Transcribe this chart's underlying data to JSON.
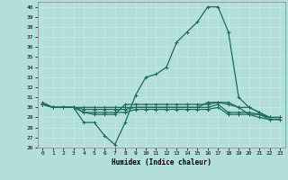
{
  "xlabel": "Humidex (Indice chaleur)",
  "bg_color": "#b2dfdb",
  "grid_color": "#c8e8e4",
  "line_color": "#1a6b5a",
  "xlim": [
    -0.5,
    23.5
  ],
  "ylim": [
    26,
    40.5
  ],
  "yticks": [
    26,
    27,
    28,
    29,
    30,
    31,
    32,
    33,
    34,
    35,
    36,
    37,
    38,
    39,
    40
  ],
  "xticks": [
    0,
    1,
    2,
    3,
    4,
    5,
    6,
    7,
    8,
    9,
    10,
    11,
    12,
    13,
    14,
    15,
    16,
    17,
    18,
    19,
    20,
    21,
    22,
    23
  ],
  "curves": [
    {
      "x": [
        0,
        1,
        2,
        3,
        4,
        5,
        6,
        7,
        8,
        9,
        10,
        11,
        12,
        13,
        14,
        15,
        16,
        17,
        18,
        19,
        20,
        21,
        22,
        23
      ],
      "y": [
        30.5,
        30.0,
        30.0,
        30.0,
        28.5,
        28.5,
        27.2,
        26.3,
        28.5,
        31.2,
        33.0,
        33.3,
        34.0,
        36.5,
        37.5,
        38.5,
        40.0,
        40.0,
        37.5,
        31.0,
        30.0,
        29.5,
        29.0,
        29.0
      ]
    },
    {
      "x": [
        0,
        1,
        2,
        3,
        4,
        5,
        6,
        7,
        8,
        9,
        10,
        11,
        12,
        13,
        14,
        15,
        16,
        17,
        18,
        19,
        20,
        21,
        22,
        23
      ],
      "y": [
        30.3,
        30.0,
        30.0,
        30.0,
        30.0,
        30.0,
        30.0,
        30.0,
        30.0,
        30.0,
        30.0,
        30.0,
        30.0,
        30.0,
        30.0,
        30.0,
        30.5,
        30.5,
        30.5,
        30.0,
        30.0,
        29.5,
        29.0,
        29.0
      ]
    },
    {
      "x": [
        0,
        1,
        2,
        3,
        4,
        5,
        6,
        7,
        8,
        9,
        10,
        11,
        12,
        13,
        14,
        15,
        16,
        17,
        18,
        19,
        20,
        21,
        22,
        23
      ],
      "y": [
        30.3,
        30.0,
        30.0,
        30.0,
        29.8,
        29.8,
        29.8,
        29.8,
        29.8,
        30.0,
        30.0,
        30.0,
        30.0,
        30.0,
        30.0,
        30.0,
        30.0,
        30.3,
        29.5,
        29.5,
        29.5,
        29.3,
        29.0,
        29.0
      ]
    },
    {
      "x": [
        0,
        1,
        2,
        3,
        4,
        5,
        6,
        7,
        8,
        9,
        10,
        11,
        12,
        13,
        14,
        15,
        16,
        17,
        18,
        19,
        20,
        21,
        22,
        23
      ],
      "y": [
        30.3,
        30.0,
        30.0,
        30.0,
        29.5,
        29.5,
        29.5,
        29.5,
        29.5,
        29.8,
        29.8,
        29.8,
        29.8,
        29.8,
        29.8,
        29.8,
        29.8,
        30.0,
        29.3,
        29.3,
        29.3,
        29.0,
        28.8,
        28.8
      ]
    },
    {
      "x": [
        0,
        1,
        2,
        3,
        4,
        5,
        6,
        7,
        8,
        9,
        10,
        11,
        12,
        13,
        14,
        15,
        16,
        17,
        18,
        19,
        20,
        21,
        22,
        23
      ],
      "y": [
        30.3,
        30.0,
        30.0,
        30.0,
        29.5,
        29.3,
        29.3,
        29.3,
        30.3,
        30.3,
        30.3,
        30.3,
        30.3,
        30.3,
        30.3,
        30.3,
        30.3,
        30.5,
        30.3,
        30.0,
        29.3,
        29.3,
        28.8,
        28.8
      ]
    }
  ],
  "linewidth": 0.9,
  "markersize": 3.0
}
